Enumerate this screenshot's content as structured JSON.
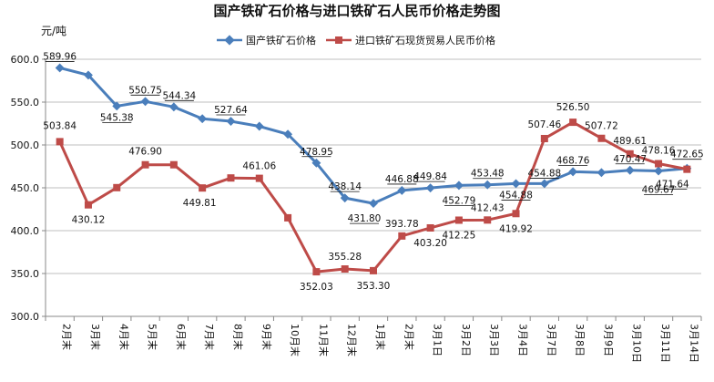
{
  "chart_data": {
    "type": "line",
    "title": "国产铁矿石价格与进口铁矿石人民币价格走势图",
    "unit_label": "元/吨",
    "xlabel": "",
    "ylabel": "",
    "ylim": [
      300,
      600
    ],
    "yticks": [
      "300.0",
      "350.0",
      "400.0",
      "450.0",
      "500.0",
      "550.0",
      "600.0"
    ],
    "grid": "horizontal",
    "legend_position": "top",
    "categories": [
      "2月末",
      "3月末",
      "4月末",
      "5月末",
      "6月末",
      "7月末",
      "8月末",
      "9月末",
      "10月末",
      "11月末",
      "12月末",
      "1月末",
      "2月末",
      "3月1日",
      "3月2日",
      "3月3日",
      "3月4日",
      "3月7日",
      "3月8日",
      "3月9日",
      "3月10日",
      "3月11日",
      "3月14日"
    ],
    "series": [
      {
        "name": "国产铁矿石价格",
        "color": "#4a7ebb",
        "marker": "diamond",
        "values": [
          589.96,
          581.5,
          545.38,
          550.75,
          544.34,
          530.6,
          527.64,
          521.8,
          512.5,
          478.95,
          438.14,
          431.8,
          446.88,
          449.84,
          452.79,
          453.48,
          454.88,
          454.88,
          468.76,
          467.8,
          470.47,
          469.67,
          472.65
        ],
        "labels": [
          "589.96",
          "",
          "545.38",
          "550.75",
          "544.34",
          "",
          "527.64",
          "",
          "",
          "478.95",
          "438.14",
          "431.80",
          "446.88",
          "449.84",
          "452.79",
          "453.48",
          "454.88",
          "454.88",
          "468.76",
          "",
          "470.47",
          "469.67",
          "472.65"
        ]
      },
      {
        "name": "进口铁矿石现货贸易人民币价格",
        "color": "#be4b48",
        "marker": "square",
        "values": [
          503.84,
          430.12,
          450.2,
          476.9,
          476.9,
          449.81,
          461.5,
          461.06,
          415.0,
          352.03,
          355.28,
          353.3,
          393.78,
          403.2,
          412.25,
          412.43,
          419.92,
          507.46,
          526.5,
          507.72,
          489.61,
          478.16,
          471.64
        ],
        "labels": [
          "503.84",
          "430.12",
          "",
          "476.90",
          "",
          "449.81",
          "",
          "461.06",
          "",
          "352.03",
          "355.28",
          "353.30",
          "393.78",
          "403.20",
          "412.25",
          "412.43",
          "419.92",
          "507.46",
          "526.50",
          "507.72",
          "489.61",
          "478.16",
          "471.64"
        ]
      }
    ]
  }
}
